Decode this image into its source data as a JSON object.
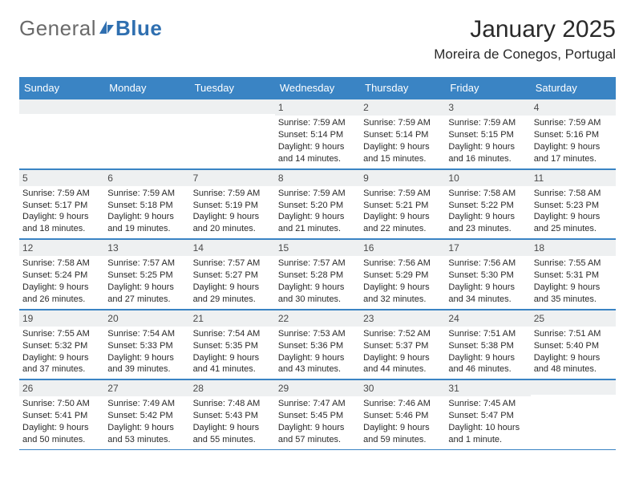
{
  "brand": {
    "general": "General",
    "blue": "Blue"
  },
  "title": "January 2025",
  "location": "Moreira de Conegos, Portugal",
  "day_headers": [
    "Sunday",
    "Monday",
    "Tuesday",
    "Wednesday",
    "Thursday",
    "Friday",
    "Saturday"
  ],
  "colors": {
    "header_bg": "#3a84c4",
    "header_text": "#ffffff",
    "daynum_bg": "#eef0f1",
    "row_border": "#3a84c4",
    "logo_gray": "#6a6a6a",
    "logo_blue": "#2f6fb0",
    "text": "#2a2a2a"
  },
  "weeks": [
    [
      {
        "n": "",
        "sunrise": "",
        "sunset": "",
        "day1": "",
        "day2": ""
      },
      {
        "n": "",
        "sunrise": "",
        "sunset": "",
        "day1": "",
        "day2": ""
      },
      {
        "n": "",
        "sunrise": "",
        "sunset": "",
        "day1": "",
        "day2": ""
      },
      {
        "n": "1",
        "sunrise": "Sunrise: 7:59 AM",
        "sunset": "Sunset: 5:14 PM",
        "day1": "Daylight: 9 hours",
        "day2": "and 14 minutes."
      },
      {
        "n": "2",
        "sunrise": "Sunrise: 7:59 AM",
        "sunset": "Sunset: 5:14 PM",
        "day1": "Daylight: 9 hours",
        "day2": "and 15 minutes."
      },
      {
        "n": "3",
        "sunrise": "Sunrise: 7:59 AM",
        "sunset": "Sunset: 5:15 PM",
        "day1": "Daylight: 9 hours",
        "day2": "and 16 minutes."
      },
      {
        "n": "4",
        "sunrise": "Sunrise: 7:59 AM",
        "sunset": "Sunset: 5:16 PM",
        "day1": "Daylight: 9 hours",
        "day2": "and 17 minutes."
      }
    ],
    [
      {
        "n": "5",
        "sunrise": "Sunrise: 7:59 AM",
        "sunset": "Sunset: 5:17 PM",
        "day1": "Daylight: 9 hours",
        "day2": "and 18 minutes."
      },
      {
        "n": "6",
        "sunrise": "Sunrise: 7:59 AM",
        "sunset": "Sunset: 5:18 PM",
        "day1": "Daylight: 9 hours",
        "day2": "and 19 minutes."
      },
      {
        "n": "7",
        "sunrise": "Sunrise: 7:59 AM",
        "sunset": "Sunset: 5:19 PM",
        "day1": "Daylight: 9 hours",
        "day2": "and 20 minutes."
      },
      {
        "n": "8",
        "sunrise": "Sunrise: 7:59 AM",
        "sunset": "Sunset: 5:20 PM",
        "day1": "Daylight: 9 hours",
        "day2": "and 21 minutes."
      },
      {
        "n": "9",
        "sunrise": "Sunrise: 7:59 AM",
        "sunset": "Sunset: 5:21 PM",
        "day1": "Daylight: 9 hours",
        "day2": "and 22 minutes."
      },
      {
        "n": "10",
        "sunrise": "Sunrise: 7:58 AM",
        "sunset": "Sunset: 5:22 PM",
        "day1": "Daylight: 9 hours",
        "day2": "and 23 minutes."
      },
      {
        "n": "11",
        "sunrise": "Sunrise: 7:58 AM",
        "sunset": "Sunset: 5:23 PM",
        "day1": "Daylight: 9 hours",
        "day2": "and 25 minutes."
      }
    ],
    [
      {
        "n": "12",
        "sunrise": "Sunrise: 7:58 AM",
        "sunset": "Sunset: 5:24 PM",
        "day1": "Daylight: 9 hours",
        "day2": "and 26 minutes."
      },
      {
        "n": "13",
        "sunrise": "Sunrise: 7:57 AM",
        "sunset": "Sunset: 5:25 PM",
        "day1": "Daylight: 9 hours",
        "day2": "and 27 minutes."
      },
      {
        "n": "14",
        "sunrise": "Sunrise: 7:57 AM",
        "sunset": "Sunset: 5:27 PM",
        "day1": "Daylight: 9 hours",
        "day2": "and 29 minutes."
      },
      {
        "n": "15",
        "sunrise": "Sunrise: 7:57 AM",
        "sunset": "Sunset: 5:28 PM",
        "day1": "Daylight: 9 hours",
        "day2": "and 30 minutes."
      },
      {
        "n": "16",
        "sunrise": "Sunrise: 7:56 AM",
        "sunset": "Sunset: 5:29 PM",
        "day1": "Daylight: 9 hours",
        "day2": "and 32 minutes."
      },
      {
        "n": "17",
        "sunrise": "Sunrise: 7:56 AM",
        "sunset": "Sunset: 5:30 PM",
        "day1": "Daylight: 9 hours",
        "day2": "and 34 minutes."
      },
      {
        "n": "18",
        "sunrise": "Sunrise: 7:55 AM",
        "sunset": "Sunset: 5:31 PM",
        "day1": "Daylight: 9 hours",
        "day2": "and 35 minutes."
      }
    ],
    [
      {
        "n": "19",
        "sunrise": "Sunrise: 7:55 AM",
        "sunset": "Sunset: 5:32 PM",
        "day1": "Daylight: 9 hours",
        "day2": "and 37 minutes."
      },
      {
        "n": "20",
        "sunrise": "Sunrise: 7:54 AM",
        "sunset": "Sunset: 5:33 PM",
        "day1": "Daylight: 9 hours",
        "day2": "and 39 minutes."
      },
      {
        "n": "21",
        "sunrise": "Sunrise: 7:54 AM",
        "sunset": "Sunset: 5:35 PM",
        "day1": "Daylight: 9 hours",
        "day2": "and 41 minutes."
      },
      {
        "n": "22",
        "sunrise": "Sunrise: 7:53 AM",
        "sunset": "Sunset: 5:36 PM",
        "day1": "Daylight: 9 hours",
        "day2": "and 43 minutes."
      },
      {
        "n": "23",
        "sunrise": "Sunrise: 7:52 AM",
        "sunset": "Sunset: 5:37 PM",
        "day1": "Daylight: 9 hours",
        "day2": "and 44 minutes."
      },
      {
        "n": "24",
        "sunrise": "Sunrise: 7:51 AM",
        "sunset": "Sunset: 5:38 PM",
        "day1": "Daylight: 9 hours",
        "day2": "and 46 minutes."
      },
      {
        "n": "25",
        "sunrise": "Sunrise: 7:51 AM",
        "sunset": "Sunset: 5:40 PM",
        "day1": "Daylight: 9 hours",
        "day2": "and 48 minutes."
      }
    ],
    [
      {
        "n": "26",
        "sunrise": "Sunrise: 7:50 AM",
        "sunset": "Sunset: 5:41 PM",
        "day1": "Daylight: 9 hours",
        "day2": "and 50 minutes."
      },
      {
        "n": "27",
        "sunrise": "Sunrise: 7:49 AM",
        "sunset": "Sunset: 5:42 PM",
        "day1": "Daylight: 9 hours",
        "day2": "and 53 minutes."
      },
      {
        "n": "28",
        "sunrise": "Sunrise: 7:48 AM",
        "sunset": "Sunset: 5:43 PM",
        "day1": "Daylight: 9 hours",
        "day2": "and 55 minutes."
      },
      {
        "n": "29",
        "sunrise": "Sunrise: 7:47 AM",
        "sunset": "Sunset: 5:45 PM",
        "day1": "Daylight: 9 hours",
        "day2": "and 57 minutes."
      },
      {
        "n": "30",
        "sunrise": "Sunrise: 7:46 AM",
        "sunset": "Sunset: 5:46 PM",
        "day1": "Daylight: 9 hours",
        "day2": "and 59 minutes."
      },
      {
        "n": "31",
        "sunrise": "Sunrise: 7:45 AM",
        "sunset": "Sunset: 5:47 PM",
        "day1": "Daylight: 10 hours",
        "day2": "and 1 minute."
      },
      {
        "n": "",
        "sunrise": "",
        "sunset": "",
        "day1": "",
        "day2": ""
      }
    ]
  ]
}
